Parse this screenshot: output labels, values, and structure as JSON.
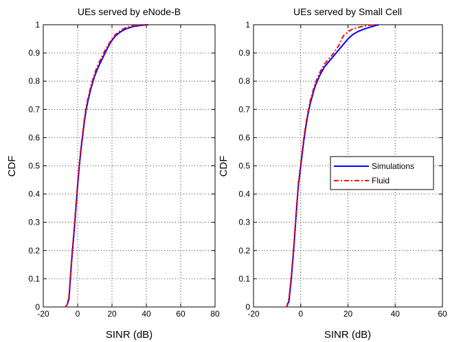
{
  "chart_data": [
    {
      "type": "line",
      "title": "UEs served by eNode-B",
      "xlabel": "SINR (dB)",
      "ylabel": "CDF",
      "xlim": [
        -20,
        80
      ],
      "ylim": [
        0,
        1
      ],
      "xticks": [
        -20,
        0,
        20,
        40,
        60,
        80
      ],
      "xtick_labels": [
        "-20",
        "0",
        "20",
        "40",
        "60",
        "80"
      ],
      "yticks": [
        0,
        0.1,
        0.2,
        0.3,
        0.4,
        0.5,
        0.6,
        0.7,
        0.8,
        0.9,
        1
      ],
      "ytick_labels": [
        "0",
        "0.1",
        "0.2",
        "0.3",
        "0.4",
        "0.5",
        "0.6",
        "0.7",
        "0.8",
        "0.9",
        "1"
      ],
      "grid": true,
      "series": [
        {
          "name": "Simulations",
          "color": "#0000ff",
          "style": "solid",
          "points": [
            [
              -7,
              0
            ],
            [
              -6,
              0.01
            ],
            [
              -5,
              0.03
            ],
            [
              -4,
              0.12
            ],
            [
              -3,
              0.2
            ],
            [
              -2,
              0.27
            ],
            [
              -1,
              0.35
            ],
            [
              0,
              0.43
            ],
            [
              1,
              0.5
            ],
            [
              2,
              0.56
            ],
            [
              3,
              0.61
            ],
            [
              4,
              0.66
            ],
            [
              5,
              0.7
            ],
            [
              6,
              0.73
            ],
            [
              8,
              0.78
            ],
            [
              10,
              0.82
            ],
            [
              12,
              0.85
            ],
            [
              14,
              0.875
            ],
            [
              16,
              0.9
            ],
            [
              18,
              0.925
            ],
            [
              20,
              0.945
            ],
            [
              22,
              0.96
            ],
            [
              25,
              0.975
            ],
            [
              28,
              0.985
            ],
            [
              32,
              0.993
            ],
            [
              36,
              0.997
            ],
            [
              41,
              1
            ]
          ]
        },
        {
          "name": "Fluid",
          "color": "#ff0000",
          "style": "dashdot",
          "points": [
            [
              -7,
              0
            ],
            [
              -6,
              0.01
            ],
            [
              -5,
              0.04
            ],
            [
              -4,
              0.13
            ],
            [
              -3,
              0.21
            ],
            [
              -2,
              0.28
            ],
            [
              -1,
              0.36
            ],
            [
              0,
              0.44
            ],
            [
              1,
              0.51
            ],
            [
              2,
              0.57
            ],
            [
              3,
              0.62
            ],
            [
              4,
              0.67
            ],
            [
              5,
              0.71
            ],
            [
              6,
              0.74
            ],
            [
              8,
              0.79
            ],
            [
              10,
              0.83
            ],
            [
              12,
              0.86
            ],
            [
              14,
              0.885
            ],
            [
              16,
              0.91
            ],
            [
              18,
              0.93
            ],
            [
              20,
              0.95
            ],
            [
              22,
              0.965
            ],
            [
              25,
              0.98
            ],
            [
              28,
              0.99
            ],
            [
              32,
              0.996
            ],
            [
              36,
              0.999
            ],
            [
              40,
              1
            ]
          ]
        }
      ]
    },
    {
      "type": "line",
      "title": "UEs served by Small Cell",
      "xlabel": "SINR (dB)",
      "ylabel": "CDF",
      "xlim": [
        -20,
        60
      ],
      "ylim": [
        0,
        1
      ],
      "xticks": [
        -20,
        0,
        20,
        40,
        60
      ],
      "xtick_labels": [
        "-20",
        "0",
        "20",
        "40",
        "60"
      ],
      "yticks": [
        0,
        0.1,
        0.2,
        0.3,
        0.4,
        0.5,
        0.6,
        0.7,
        0.8,
        0.9,
        1
      ],
      "ytick_labels": [
        "0",
        "0.1",
        "0.2",
        "0.3",
        "0.4",
        "0.5",
        "0.6",
        "0.7",
        "0.8",
        "0.9",
        "1"
      ],
      "grid": true,
      "legend": {
        "placement": "center-right",
        "entries": [
          "Simulations",
          "Fluid"
        ]
      },
      "series": [
        {
          "name": "Simulations",
          "color": "#0000ff",
          "style": "solid",
          "points": [
            [
              -6,
              0
            ],
            [
              -5,
              0.02
            ],
            [
              -4,
              0.1
            ],
            [
              -3,
              0.2
            ],
            [
              -2,
              0.32
            ],
            [
              -1,
              0.43
            ],
            [
              0,
              0.5
            ],
            [
              1,
              0.57
            ],
            [
              2,
              0.63
            ],
            [
              3,
              0.68
            ],
            [
              4,
              0.72
            ],
            [
              5,
              0.75
            ],
            [
              6,
              0.78
            ],
            [
              8,
              0.82
            ],
            [
              10,
              0.85
            ],
            [
              12,
              0.87
            ],
            [
              14,
              0.89
            ],
            [
              16,
              0.91
            ],
            [
              18,
              0.93
            ],
            [
              20,
              0.95
            ],
            [
              22,
              0.965
            ],
            [
              24,
              0.975
            ],
            [
              26,
              0.982
            ],
            [
              28,
              0.988
            ],
            [
              30,
              0.993
            ],
            [
              33,
              1
            ]
          ]
        },
        {
          "name": "Fluid",
          "color": "#ff0000",
          "style": "dashdot",
          "points": [
            [
              -6,
              0
            ],
            [
              -5,
              0.03
            ],
            [
              -4,
              0.11
            ],
            [
              -3,
              0.21
            ],
            [
              -2,
              0.33
            ],
            [
              -1,
              0.44
            ],
            [
              0,
              0.51
            ],
            [
              1,
              0.58
            ],
            [
              2,
              0.64
            ],
            [
              3,
              0.69
            ],
            [
              4,
              0.73
            ],
            [
              5,
              0.76
            ],
            [
              6,
              0.79
            ],
            [
              8,
              0.83
            ],
            [
              10,
              0.86
            ],
            [
              12,
              0.88
            ],
            [
              14,
              0.9
            ],
            [
              16,
              0.925
            ],
            [
              18,
              0.96
            ],
            [
              20,
              0.975
            ],
            [
              22,
              0.985
            ],
            [
              25,
              0.992
            ],
            [
              28,
              0.997
            ],
            [
              32,
              1
            ]
          ]
        }
      ]
    }
  ]
}
